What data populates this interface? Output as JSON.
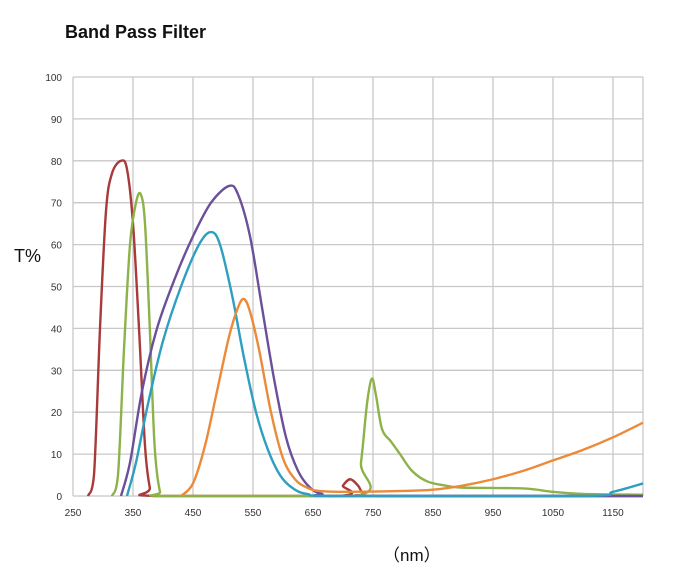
{
  "chart_data": {
    "type": "line",
    "title": "Band Pass Filter",
    "xlabel": "（nm）",
    "ylabel": "T%",
    "xlim": [
      250,
      1200
    ],
    "ylim": [
      0,
      100
    ],
    "grid": true,
    "x_ticks": [
      250,
      350,
      450,
      550,
      650,
      750,
      850,
      950,
      1050,
      1150
    ],
    "y_ticks": [
      0,
      10,
      20,
      30,
      40,
      50,
      60,
      70,
      80,
      90,
      100
    ],
    "series": [
      {
        "color": "#a83a3a",
        "points": [
          [
            275,
            0
          ],
          [
            285,
            5
          ],
          [
            295,
            40
          ],
          [
            305,
            68
          ],
          [
            315,
            77
          ],
          [
            330,
            80
          ],
          [
            340,
            78
          ],
          [
            350,
            65
          ],
          [
            360,
            40
          ],
          [
            370,
            12
          ],
          [
            378,
            2
          ],
          [
            385,
            0
          ],
          [
            690,
            0
          ],
          [
            700,
            2.5
          ],
          [
            712,
            4
          ],
          [
            725,
            2.5
          ],
          [
            735,
            0.5
          ],
          [
            760,
            0
          ],
          [
            1200,
            0
          ]
        ]
      },
      {
        "color": "#8db24a",
        "points": [
          [
            315,
            0
          ],
          [
            325,
            5
          ],
          [
            335,
            35
          ],
          [
            345,
            60
          ],
          [
            355,
            70
          ],
          [
            363,
            72
          ],
          [
            370,
            65
          ],
          [
            378,
            40
          ],
          [
            386,
            12
          ],
          [
            395,
            1
          ],
          [
            405,
            0
          ],
          [
            720,
            0
          ],
          [
            730,
            8
          ],
          [
            740,
            22
          ],
          [
            748,
            28
          ],
          [
            755,
            24
          ],
          [
            765,
            16
          ],
          [
            780,
            13
          ],
          [
            795,
            10
          ],
          [
            815,
            6
          ],
          [
            840,
            3.5
          ],
          [
            870,
            2.5
          ],
          [
            900,
            2
          ],
          [
            1000,
            1.8
          ],
          [
            1050,
            1
          ],
          [
            1100,
            0.5
          ],
          [
            1200,
            0.3
          ]
        ]
      },
      {
        "color": "#6c4f99",
        "points": [
          [
            330,
            0
          ],
          [
            345,
            8
          ],
          [
            365,
            25
          ],
          [
            390,
            40
          ],
          [
            420,
            52
          ],
          [
            450,
            62
          ],
          [
            480,
            70
          ],
          [
            510,
            74
          ],
          [
            525,
            72
          ],
          [
            545,
            62
          ],
          [
            565,
            45
          ],
          [
            585,
            28
          ],
          [
            605,
            14
          ],
          [
            625,
            6
          ],
          [
            645,
            2
          ],
          [
            665,
            0.5
          ],
          [
            700,
            0
          ],
          [
            1200,
            0
          ]
        ]
      },
      {
        "color": "#2e9fc0",
        "points": [
          [
            340,
            0
          ],
          [
            355,
            8
          ],
          [
            375,
            22
          ],
          [
            400,
            37
          ],
          [
            430,
            50
          ],
          [
            460,
            60
          ],
          [
            480,
            63
          ],
          [
            495,
            60
          ],
          [
            515,
            48
          ],
          [
            535,
            33
          ],
          [
            555,
            20
          ],
          [
            575,
            11
          ],
          [
            595,
            5
          ],
          [
            615,
            2
          ],
          [
            640,
            0.5
          ],
          [
            700,
            0
          ],
          [
            1100,
            0
          ],
          [
            1150,
            1
          ],
          [
            1200,
            3
          ]
        ]
      },
      {
        "color": "#ec8a3a",
        "points": [
          [
            430,
            0
          ],
          [
            450,
            3
          ],
          [
            470,
            12
          ],
          [
            490,
            25
          ],
          [
            510,
            38
          ],
          [
            525,
            45
          ],
          [
            535,
            47
          ],
          [
            545,
            44
          ],
          [
            560,
            35
          ],
          [
            580,
            20
          ],
          [
            600,
            9
          ],
          [
            620,
            4
          ],
          [
            640,
            2
          ],
          [
            660,
            1.2
          ],
          [
            700,
            1
          ],
          [
            800,
            1.2
          ],
          [
            850,
            1.5
          ],
          [
            900,
            2.5
          ],
          [
            950,
            4
          ],
          [
            1000,
            6
          ],
          [
            1050,
            8.5
          ],
          [
            1100,
            11
          ],
          [
            1150,
            14
          ],
          [
            1200,
            17.5
          ]
        ]
      }
    ]
  }
}
